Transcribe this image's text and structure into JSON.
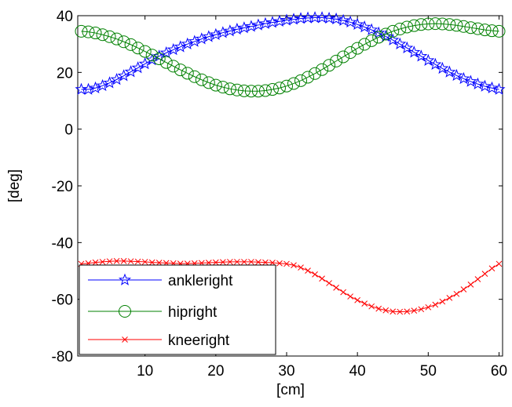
{
  "chart_data": {
    "type": "line",
    "title": "",
    "xlabel": "[cm]",
    "ylabel": "[deg]",
    "xlim": [
      0.5,
      60.5
    ],
    "ylim": [
      -80,
      40
    ],
    "xticks": [
      "10",
      "20",
      "30",
      "40",
      "50",
      "60"
    ],
    "yticks": [
      "40",
      "20",
      "0",
      "-20",
      "-40",
      "-60",
      "-80"
    ],
    "legend_position": "bottom-left",
    "x": [
      1,
      2,
      3,
      4,
      5,
      6,
      7,
      8,
      9,
      10,
      11,
      12,
      13,
      14,
      15,
      16,
      17,
      18,
      19,
      20,
      21,
      22,
      23,
      24,
      25,
      26,
      27,
      28,
      29,
      30,
      31,
      32,
      33,
      34,
      35,
      36,
      37,
      38,
      39,
      40,
      41,
      42,
      43,
      44,
      45,
      46,
      47,
      48,
      49,
      50,
      51,
      52,
      53,
      54,
      55,
      56,
      57,
      58,
      59,
      60
    ],
    "series": [
      {
        "name": "ankleright",
        "color": "#0000ff",
        "marker": "star",
        "values": [
          14.0,
          14.0,
          14.5,
          15.3,
          16.3,
          17.5,
          18.8,
          20.2,
          21.6,
          23.0,
          24.4,
          25.7,
          26.9,
          28.0,
          29.0,
          30.0,
          30.9,
          31.8,
          32.6,
          33.3,
          34.0,
          34.6,
          35.2,
          35.7,
          36.2,
          36.7,
          37.2,
          37.6,
          38.0,
          38.4,
          38.7,
          39.0,
          39.2,
          39.3,
          39.3,
          39.1,
          38.8,
          38.3,
          37.7,
          36.9,
          36.0,
          35.0,
          33.9,
          32.7,
          31.4,
          30.0,
          28.6,
          27.1,
          25.7,
          24.2,
          22.8,
          21.4,
          20.1,
          18.9,
          17.8,
          16.8,
          15.9,
          15.1,
          14.5,
          14.0
        ]
      },
      {
        "name": "hipright",
        "color": "#008000",
        "marker": "circle",
        "values": [
          34.5,
          34.3,
          33.9,
          33.3,
          32.6,
          31.8,
          30.8,
          29.8,
          28.6,
          27.4,
          26.1,
          24.8,
          23.5,
          22.2,
          20.9,
          19.7,
          18.5,
          17.4,
          16.4,
          15.5,
          14.8,
          14.2,
          13.8,
          13.5,
          13.4,
          13.4,
          13.6,
          14.0,
          14.5,
          15.2,
          16.1,
          17.1,
          18.3,
          19.6,
          21.0,
          22.5,
          24.0,
          25.5,
          27.0,
          28.5,
          29.9,
          31.2,
          32.4,
          33.5,
          34.5,
          35.3,
          36.0,
          36.5,
          36.9,
          37.1,
          37.2,
          37.1,
          36.9,
          36.6,
          36.2,
          35.8,
          35.4,
          35.0,
          34.7,
          34.5
        ]
      },
      {
        "name": "kneeright",
        "color": "#ff0000",
        "marker": "x",
        "values": [
          -47.5,
          -47.3,
          -47.0,
          -46.8,
          -46.6,
          -46.5,
          -46.5,
          -46.6,
          -46.7,
          -46.8,
          -47.0,
          -47.1,
          -47.2,
          -47.3,
          -47.4,
          -47.4,
          -47.3,
          -47.2,
          -47.1,
          -47.0,
          -46.9,
          -46.8,
          -46.8,
          -46.8,
          -46.8,
          -46.9,
          -47.0,
          -47.1,
          -47.3,
          -47.5,
          -48.0,
          -48.8,
          -49.9,
          -51.2,
          -52.7,
          -54.3,
          -55.9,
          -57.5,
          -59.0,
          -60.3,
          -61.5,
          -62.5,
          -63.3,
          -63.9,
          -64.3,
          -64.4,
          -64.3,
          -64.0,
          -63.5,
          -62.8,
          -61.9,
          -60.8,
          -59.5,
          -58.1,
          -56.5,
          -54.8,
          -52.9,
          -51.0,
          -49.1,
          -47.5
        ]
      }
    ]
  }
}
